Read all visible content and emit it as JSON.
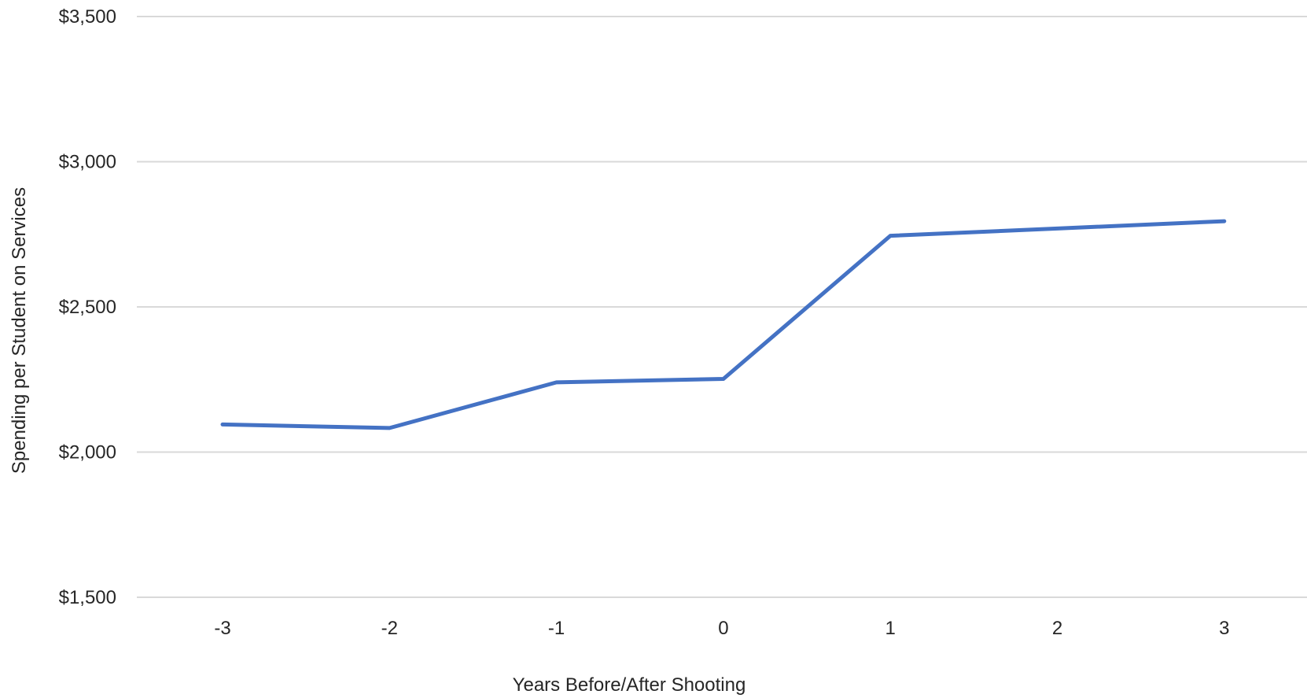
{
  "chart_data": {
    "type": "line",
    "title": "",
    "xlabel": "Years Before/After Shooting",
    "ylabel": "Spending per Student on Services",
    "categories": [
      "-3",
      "-2",
      "-1",
      "0",
      "1",
      "2",
      "3"
    ],
    "series": [
      {
        "values": [
          2095,
          2083,
          2240,
          2252,
          2745,
          2770,
          2795
        ],
        "color": "#4472c4"
      }
    ],
    "ylim": [
      1500,
      3500
    ],
    "yticks": [
      1500,
      2000,
      2500,
      3000,
      3500
    ],
    "ytick_labels": [
      "$1,500",
      "$2,000",
      "$2,500",
      "$3,000",
      "$3,500"
    ],
    "grid": true,
    "legend": "none"
  }
}
